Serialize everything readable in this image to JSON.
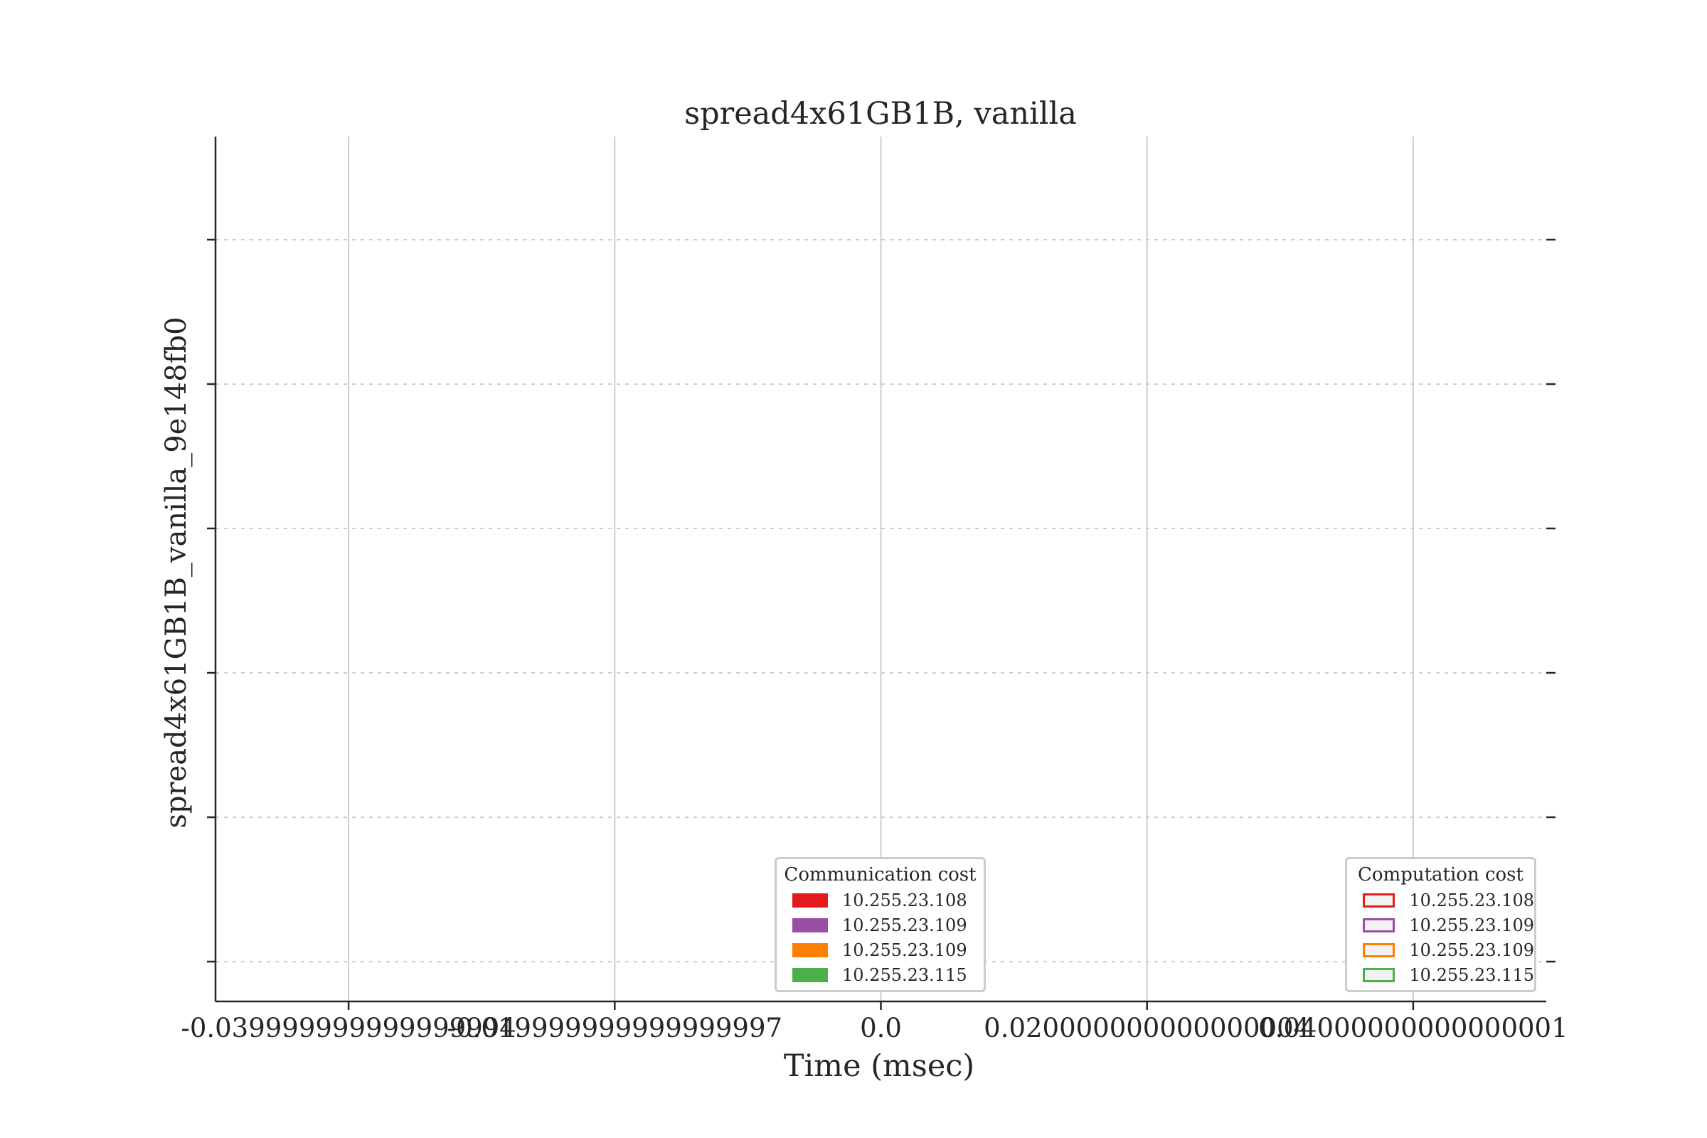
{
  "chart_data": {
    "type": "bar",
    "orientation": "horizontal",
    "title": "spread4x61GB1B, vanilla",
    "xlabel": "Time (msec)",
    "ylabel": "spread4x61GB1B_vanilla_9e148fb0",
    "xlim": [
      -0.05,
      0.05
    ],
    "x_ticks": [
      -0.04,
      -0.02,
      0.0,
      0.02,
      0.04
    ],
    "x_tick_labels": [
      "-0.039999999999999994",
      "-0.019999999999999997",
      "0.0",
      "0.020000000000000004",
      "0.04000000000000001"
    ],
    "y_gridlines": 6,
    "grid": true,
    "series": [],
    "legends": [
      {
        "title": "Communication cost",
        "placement": "lower-center",
        "style": "filled",
        "entries": [
          {
            "label": "10.255.23.108",
            "color": "#e41a1c"
          },
          {
            "label": "10.255.23.109",
            "color": "#984ea3"
          },
          {
            "label": "10.255.23.109",
            "color": "#ff7f00"
          },
          {
            "label": "10.255.23.115",
            "color": "#4daf4a"
          }
        ]
      },
      {
        "title": "Computation cost",
        "placement": "lower-right",
        "style": "outlined",
        "entries": [
          {
            "label": "10.255.23.108",
            "color": "#e41a1c"
          },
          {
            "label": "10.255.23.109",
            "color": "#984ea3"
          },
          {
            "label": "10.255.23.109",
            "color": "#ff7f00"
          },
          {
            "label": "10.255.23.115",
            "color": "#4daf4a"
          }
        ]
      }
    ]
  }
}
